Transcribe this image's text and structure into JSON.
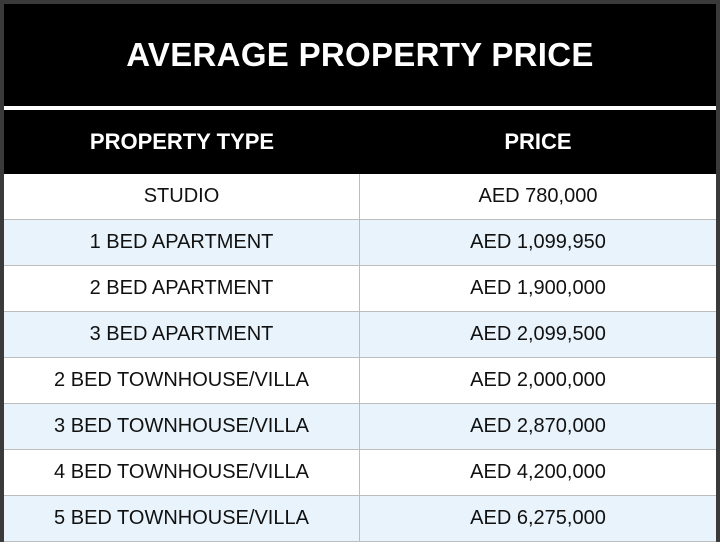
{
  "colors": {
    "frame": "#000000",
    "header_text": "#ffffff",
    "row_odd": "#ffffff",
    "row_even": "#e8f3fb",
    "row_text": "#111111"
  },
  "title": "AVERAGE PROPERTY PRICE",
  "chart_data": {
    "type": "table",
    "title": "AVERAGE PROPERTY PRICE",
    "columns": [
      "PROPERTY TYPE",
      "PRICE"
    ],
    "rows": [
      {
        "type": "STUDIO",
        "price": "AED 780,000"
      },
      {
        "type": "1 BED APARTMENT",
        "price": "AED 1,099,950"
      },
      {
        "type": "2 BED APARTMENT",
        "price": "AED 1,900,000"
      },
      {
        "type": "3 BED APARTMENT",
        "price": "AED 2,099,500"
      },
      {
        "type": "2 BED TOWNHOUSE/VILLA",
        "price": "AED 2,000,000"
      },
      {
        "type": "3 BED TOWNHOUSE/VILLA",
        "price": "AED 2,870,000"
      },
      {
        "type": "4 BED TOWNHOUSE/VILLA",
        "price": "AED 4,200,000"
      },
      {
        "type": "5 BED TOWNHOUSE/VILLA",
        "price": "AED 6,275,000"
      }
    ]
  }
}
